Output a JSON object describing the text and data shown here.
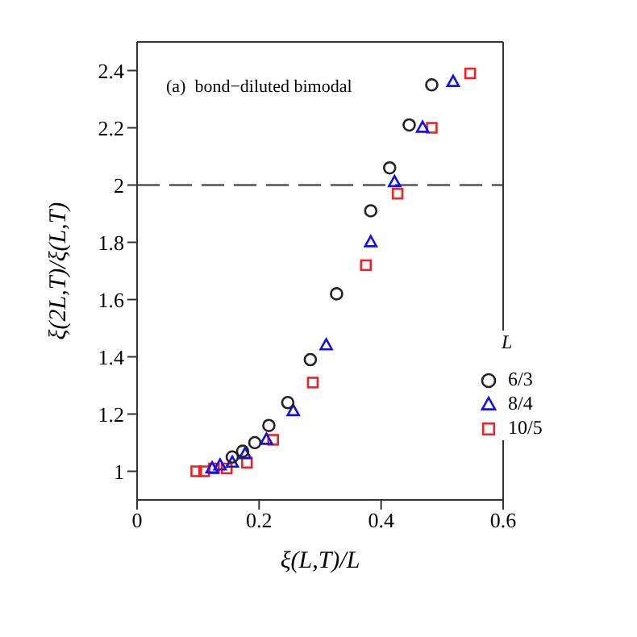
{
  "chart_data": {
    "type": "scatter",
    "xlabel": "ξ(L,T)/L",
    "ylabel": "ξ(2L,T)/ξ(L,T)",
    "legend_title": "L",
    "annotations": [
      "(a)  bond−diluted bimodal"
    ],
    "xlim": [
      0,
      0.6
    ],
    "xticks": [
      0,
      0.2,
      0.4,
      0.6
    ],
    "ylim": [
      0.9,
      2.5
    ],
    "yticks": [
      1,
      1.2,
      1.4,
      1.6,
      1.8,
      2,
      2.2,
      2.4
    ],
    "grid": false,
    "legend": "bottom right",
    "ref_lines": [
      {
        "axis": "y",
        "value": 2,
        "color": "#555555",
        "line_style": "dashed"
      }
    ],
    "series": [
      {
        "name": "6/3",
        "color": "#222222",
        "marker": "circle",
        "x": [
          0.156,
          0.173,
          0.193,
          0.216,
          0.247,
          0.284,
          0.327,
          0.383,
          0.414,
          0.446,
          0.483
        ],
        "values": [
          1.05,
          1.07,
          1.1,
          1.16,
          1.24,
          1.39,
          1.62,
          1.91,
          2.06,
          2.21,
          2.35
        ]
      },
      {
        "name": "8/4",
        "color": "#1010ee",
        "marker": "triangle",
        "x": [
          0.123,
          0.136,
          0.156,
          0.177,
          0.212,
          0.256,
          0.31,
          0.383,
          0.422,
          0.468,
          0.518
        ],
        "values": [
          1.01,
          1.02,
          1.03,
          1.06,
          1.11,
          1.21,
          1.44,
          1.8,
          2.01,
          2.2,
          2.36
        ]
      },
      {
        "name": "10/5",
        "color": "#ee2222",
        "marker": "square",
        "x": [
          0.097,
          0.11,
          0.126,
          0.147,
          0.18,
          0.223,
          0.288,
          0.375,
          0.427,
          0.483,
          0.546
        ],
        "values": [
          1.0,
          1.0,
          1.01,
          1.01,
          1.03,
          1.11,
          1.31,
          1.72,
          1.97,
          2.2,
          2.39
        ]
      }
    ]
  }
}
